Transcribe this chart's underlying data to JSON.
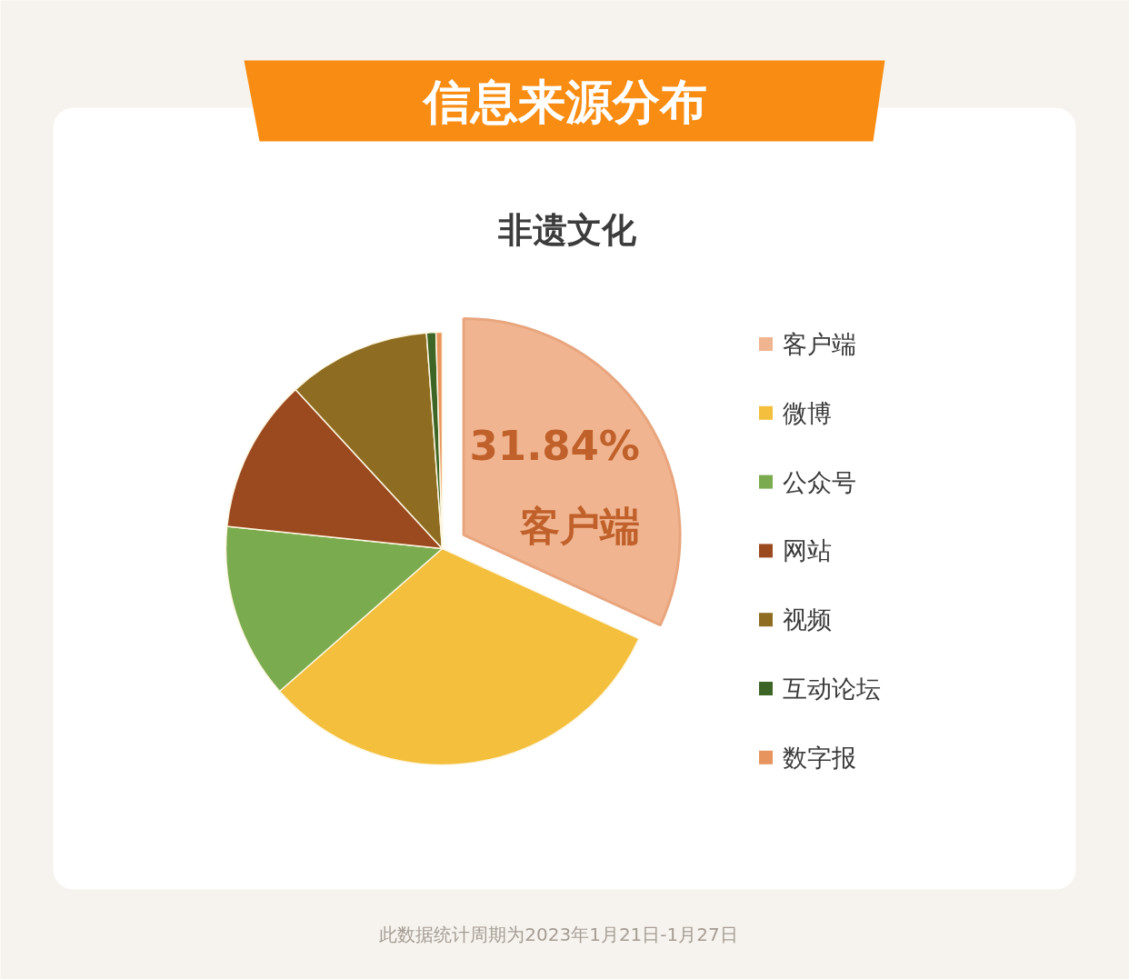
{
  "chart_data": {
    "type": "pie",
    "title": "信息来源分布",
    "subtitle": "非遗文化",
    "categories": [
      "客户端",
      "微博",
      "公众号",
      "网站",
      "视频",
      "互动论坛",
      "数字报"
    ],
    "values": [
      31.84,
      31.7,
      13.1,
      11.5,
      10.7,
      0.7,
      0.46
    ],
    "colors": [
      "#f0b590",
      "#f3bf3c",
      "#7aab4f",
      "#9b4a20",
      "#8e6c22",
      "#3d6526",
      "#e8945e"
    ],
    "value_labels": [
      "31.84%",
      null,
      null,
      null,
      null,
      null,
      null
    ],
    "legend": "right",
    "annotations": [
      "此数据统计周期为2023年1月21日-1月27日"
    ]
  }
}
